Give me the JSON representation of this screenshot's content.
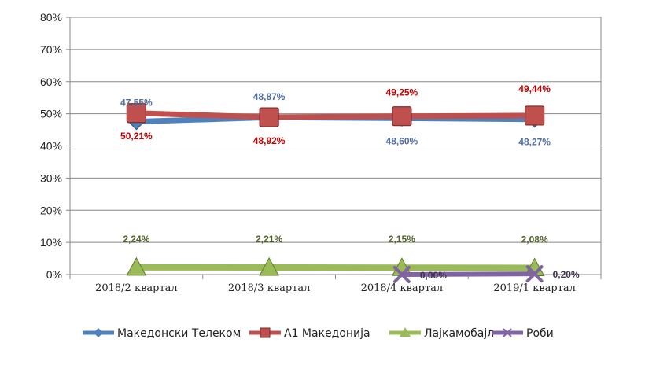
{
  "chart_data": {
    "type": "line",
    "title": "",
    "xlabel": "",
    "ylabel": "",
    "ylim": [
      0,
      80
    ],
    "y_ticks": [
      "0%",
      "10%",
      "20%",
      "30%",
      "40%",
      "50%",
      "60%",
      "70%",
      "80%"
    ],
    "grid": true,
    "legend_position": "bottom",
    "categories": [
      "2018/2 квартал",
      "2018/3 квартал",
      "2018/4 квартал",
      "2019/1 квартал"
    ],
    "series": [
      {
        "name": "Македонски Телеком",
        "values": [
          47.55,
          48.87,
          48.6,
          48.27
        ],
        "labels": [
          "47,55%",
          "48,87%",
          "48,60%",
          "48,27%"
        ],
        "color": "#4F81BD",
        "label_color": "#4F6FA0",
        "marker": "diamond"
      },
      {
        "name": "А1 Македонија",
        "values": [
          50.21,
          48.92,
          49.25,
          49.44
        ],
        "labels": [
          "50,21%",
          "48,92%",
          "49,25%",
          "49,44%"
        ],
        "color": "#C0504D",
        "label_color": "#C00000",
        "marker": "square"
      },
      {
        "name": "Лајкамобајл",
        "values": [
          2.24,
          2.21,
          2.15,
          2.08
        ],
        "labels": [
          "2,24%",
          "2,21%",
          "2,15%",
          "2,08%"
        ],
        "color": "#9BBB59",
        "label_color": "#4F6228",
        "marker": "triangle"
      },
      {
        "name": "Роби",
        "values": [
          null,
          null,
          0.0,
          0.2
        ],
        "labels": [
          null,
          null,
          "0,00%",
          "0,20%"
        ],
        "color": "#8064A2",
        "label_color": "#3F3151",
        "marker": "x"
      }
    ]
  }
}
